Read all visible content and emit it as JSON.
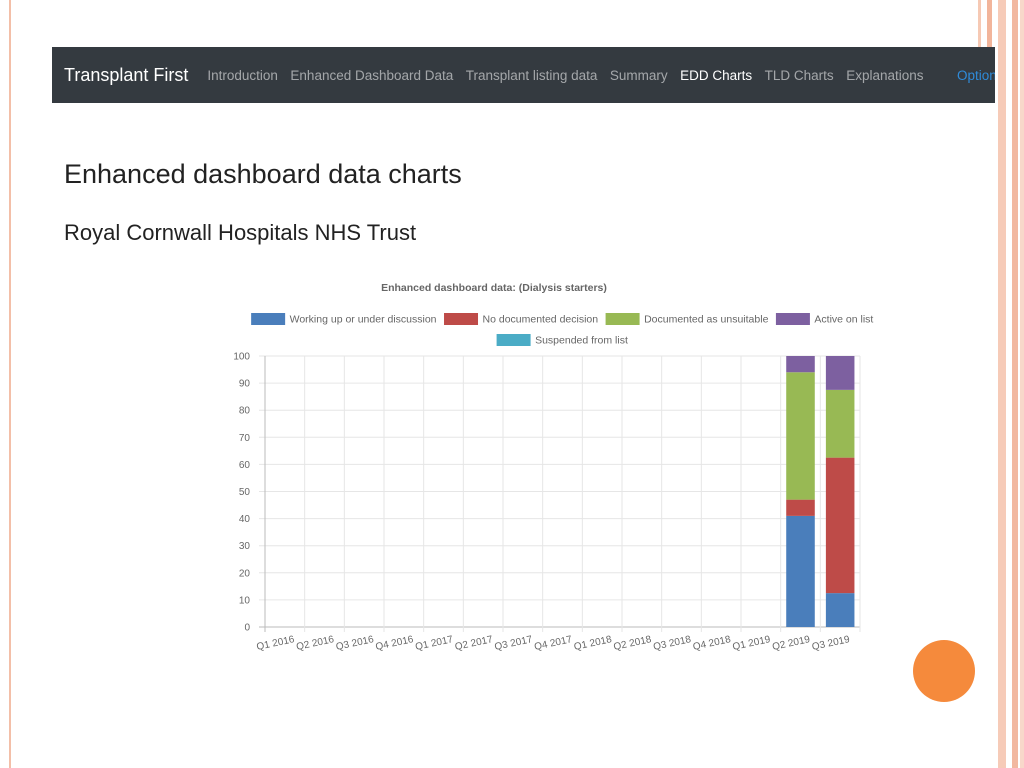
{
  "navbar": {
    "brand": "Transplant First",
    "items": [
      {
        "label": "Introduction",
        "active": false
      },
      {
        "label": "Enhanced Dashboard Data",
        "active": false
      },
      {
        "label": "Transplant listing data",
        "active": false
      },
      {
        "label": "Summary",
        "active": false
      },
      {
        "label": "EDD Charts",
        "active": true
      },
      {
        "label": "TLD Charts",
        "active": false
      },
      {
        "label": "Explanations",
        "active": false
      }
    ],
    "right_link": "Option"
  },
  "page": {
    "title": "Enhanced dashboard data charts",
    "subtitle": "Royal Cornwall Hospitals NHS Trust"
  },
  "colors": {
    "navbar_bg": "#343a40",
    "accent_link": "#2f8bd9",
    "slide_circle": "#f58a3c"
  },
  "chart_data": {
    "type": "bar",
    "stacked": true,
    "title": "Enhanced dashboard data: (Dialysis starters)",
    "xlabel": "",
    "ylabel": "",
    "ylim": [
      0,
      100
    ],
    "yticks": [
      0,
      10,
      20,
      30,
      40,
      50,
      60,
      70,
      80,
      90,
      100
    ],
    "grid": true,
    "legend_position": "top",
    "categories": [
      "Q1 2016",
      "Q2 2016",
      "Q3 2016",
      "Q4 2016",
      "Q1 2017",
      "Q2 2017",
      "Q3 2017",
      "Q4 2017",
      "Q1 2018",
      "Q2 2018",
      "Q3 2018",
      "Q4 2018",
      "Q1 2019",
      "Q2 2019",
      "Q3 2019"
    ],
    "series": [
      {
        "name": "Working up or under discussion",
        "color": "#4a7ebb",
        "values": [
          0,
          0,
          0,
          0,
          0,
          0,
          0,
          0,
          0,
          0,
          0,
          0,
          0,
          41,
          12.5
        ]
      },
      {
        "name": "No documented decision",
        "color": "#be4b48",
        "values": [
          0,
          0,
          0,
          0,
          0,
          0,
          0,
          0,
          0,
          0,
          0,
          0,
          0,
          6,
          50
        ]
      },
      {
        "name": "Documented as unsuitable",
        "color": "#98b954",
        "values": [
          0,
          0,
          0,
          0,
          0,
          0,
          0,
          0,
          0,
          0,
          0,
          0,
          0,
          47,
          25
        ]
      },
      {
        "name": "Active on list",
        "color": "#7d60a0",
        "values": [
          0,
          0,
          0,
          0,
          0,
          0,
          0,
          0,
          0,
          0,
          0,
          0,
          0,
          6,
          12.5
        ]
      },
      {
        "name": "Suspended from list",
        "color": "#4bacc6",
        "values": [
          0,
          0,
          0,
          0,
          0,
          0,
          0,
          0,
          0,
          0,
          0,
          0,
          0,
          0,
          0
        ]
      }
    ]
  }
}
